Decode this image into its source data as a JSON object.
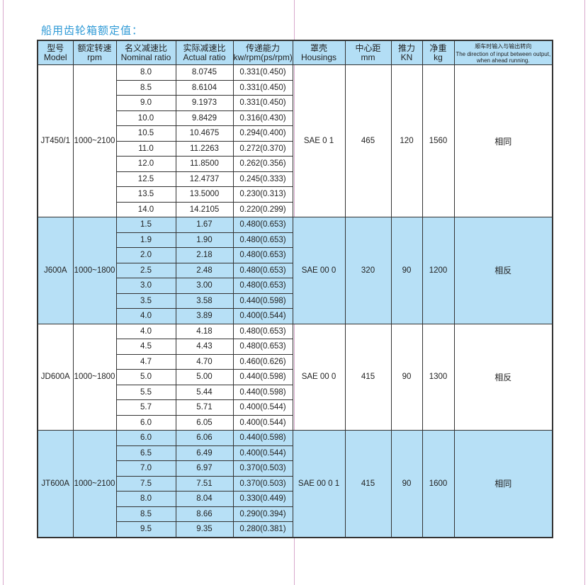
{
  "title": "船用齿轮箱额定值：",
  "headers": [
    {
      "cn": "型号",
      "en": "Model"
    },
    {
      "cn": "额定转速",
      "en": "rpm"
    },
    {
      "cn": "名义减速比",
      "en": "Nominal ratio"
    },
    {
      "cn": "实际减速比",
      "en": "Actual ratio"
    },
    {
      "cn": "传递能力",
      "en": "kw/rpm(ps/rpm)"
    },
    {
      "cn": "罩壳",
      "en": "Housings"
    },
    {
      "cn": "中心距",
      "en": "mm"
    },
    {
      "cn": "推力",
      "en": "KN"
    },
    {
      "cn": "净重",
      "en": "kg"
    },
    {
      "cn": "顺车时输入与输出转向",
      "en": "The direction of input between output, when ahead running."
    }
  ],
  "colors": {
    "title": "#2f9ad6",
    "header_bg": "#b3def5",
    "row_blue": "#b7e0f6"
  },
  "groups": [
    {
      "model": "JT450/1",
      "rpm": "1000~2100",
      "housing": "SAE 0 1",
      "center": "465",
      "thrust": "120",
      "weight": "1560",
      "direction": "相同",
      "shaded": false,
      "rows": [
        [
          "8.0",
          "8.0745",
          "0.331(0.450)"
        ],
        [
          "8.5",
          "8.6104",
          "0.331(0.450)"
        ],
        [
          "9.0",
          "9.1973",
          "0.331(0.450)"
        ],
        [
          "10.0",
          "9.8429",
          "0.316(0.430)"
        ],
        [
          "10.5",
          "10.4675",
          "0.294(0.400)"
        ],
        [
          "11.0",
          "11.2263",
          "0.272(0.370)"
        ],
        [
          "12.0",
          "11.8500",
          "0.262(0.356)"
        ],
        [
          "12.5",
          "12.4737",
          "0.245(0.333)"
        ],
        [
          "13.5",
          "13.5000",
          "0.230(0.313)"
        ],
        [
          "14.0",
          "14.2105",
          "0.220(0.299)"
        ]
      ]
    },
    {
      "model": "J600A",
      "rpm": "1000~1800",
      "housing": "SAE 00 0",
      "center": "320",
      "thrust": "90",
      "weight": "1200",
      "direction": "相反",
      "shaded": true,
      "rows": [
        [
          "1.5",
          "1.67",
          "0.480(0.653)"
        ],
        [
          "1.9",
          "1.90",
          "0.480(0.653)"
        ],
        [
          "2.0",
          "2.18",
          "0.480(0.653)"
        ],
        [
          "2.5",
          "2.48",
          "0.480(0.653)"
        ],
        [
          "3.0",
          "3.00",
          "0.480(0.653)"
        ],
        [
          "3.5",
          "3.58",
          "0.440(0.598)"
        ],
        [
          "4.0",
          "3.89",
          "0.400(0.544)"
        ]
      ]
    },
    {
      "model": "JD600A",
      "rpm": "1000~1800",
      "housing": "SAE 00 0",
      "center": "415",
      "thrust": "90",
      "weight": "1300",
      "direction": "相反",
      "shaded": false,
      "rows": [
        [
          "4.0",
          "4.18",
          "0.480(0.653)"
        ],
        [
          "4.5",
          "4.43",
          "0.480(0.653)"
        ],
        [
          "4.7",
          "4.70",
          "0.460(0.626)"
        ],
        [
          "5.0",
          "5.00",
          "0.440(0.598)"
        ],
        [
          "5.5",
          "5.44",
          "0.440(0.598)"
        ],
        [
          "5.7",
          "5.71",
          "0.400(0.544)"
        ],
        [
          "6.0",
          "6.05",
          "0.400(0.544)"
        ]
      ]
    },
    {
      "model": "JT600A",
      "rpm": "1000~2100",
      "housing": "SAE 00 0 1",
      "center": "415",
      "thrust": "90",
      "weight": "1600",
      "direction": "相同",
      "shaded": true,
      "rows": [
        [
          "6.0",
          "6.06",
          "0.440(0.598)"
        ],
        [
          "6.5",
          "6.49",
          "0.400(0.544)"
        ],
        [
          "7.0",
          "6.97",
          "0.370(0.503)"
        ],
        [
          "7.5",
          "7.51",
          "0.370(0.503)"
        ],
        [
          "8.0",
          "8.04",
          "0.330(0.449)"
        ],
        [
          "8.5",
          "8.66",
          "0.290(0.394)"
        ],
        [
          "9.5",
          "9.35",
          "0.280(0.381)"
        ]
      ]
    }
  ]
}
